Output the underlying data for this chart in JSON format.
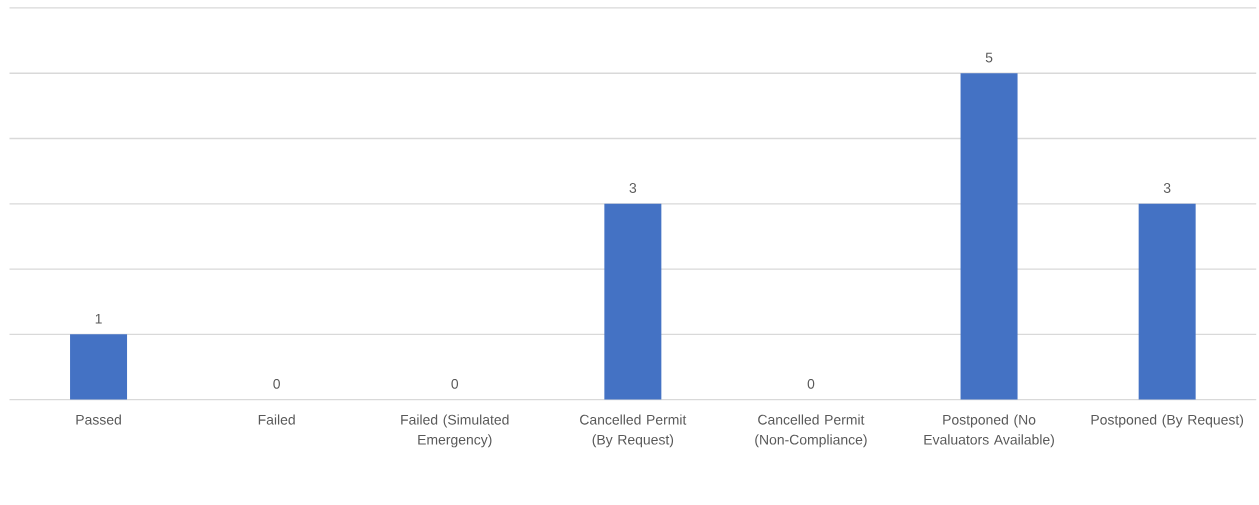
{
  "chart_data": {
    "type": "bar",
    "categories": [
      "Passed",
      "Failed",
      "Failed (Simulated Emergency)",
      "Cancelled Permit (By Request)",
      "Cancelled Permit (Non-Compliance)",
      "Postponed (No Evaluators Available)",
      "Postponed (By Request)"
    ],
    "values": [
      1,
      0,
      0,
      3,
      0,
      5,
      3
    ],
    "color": "#4472c4",
    "ylim": [
      0,
      6
    ],
    "yticks": [
      {
        "value": 0,
        "label": null
      },
      {
        "value": 1,
        "label": null
      },
      {
        "value": 2,
        "label": null
      },
      {
        "value": 3,
        "label": null
      },
      {
        "value": 4,
        "label": null
      },
      {
        "value": 5,
        "label": null
      },
      {
        "value": 6,
        "label": null
      }
    ],
    "grid": "y",
    "tick_labels": "x",
    "data_labels": true
  }
}
